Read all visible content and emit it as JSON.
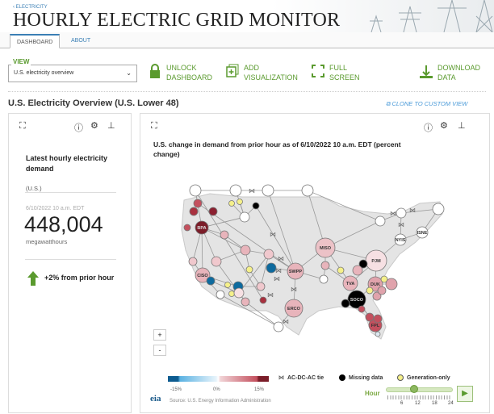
{
  "header": {
    "breadcrumb": "‹ ELECTRICITY",
    "title": "HOURLY ELECTRIC GRID MONITOR"
  },
  "tabs": [
    {
      "label": "DASHBOARD",
      "active": true
    },
    {
      "label": "ABOUT",
      "active": false
    }
  ],
  "view": {
    "label": "VIEW",
    "selected": "U.S. electricity overview"
  },
  "toolbar": {
    "unlock": [
      "UNLOCK",
      "DASHBOARD"
    ],
    "add": [
      "ADD",
      "VISUALIZATION"
    ],
    "full": [
      "FULL",
      "SCREEN"
    ],
    "download": [
      "DOWNLOAD",
      "DATA"
    ]
  },
  "section": {
    "title": "U.S. Electricity Overview (U.S. Lower 48)",
    "clone": "CLONE TO CUSTOM VIEW"
  },
  "demand_card": {
    "heading": "Latest hourly electricity demand",
    "region": "(U.S.)",
    "timestamp": "6/10/2022 10 a.m. EDT",
    "value": "448,004",
    "unit": "megawatthours",
    "change": "+2% from prior hour",
    "change_direction": "up"
  },
  "map_card": {
    "title": "U.S. change in demand from prior hour as of 6/10/2022 10 a.m. EDT (percent change)",
    "zoom_in": "+",
    "zoom_out": "-",
    "colorbar_ticks": [
      "-15%",
      "0%",
      "15%"
    ],
    "legend": {
      "tie": "AC-DC-AC tie",
      "missing": "Missing data",
      "generation": "Generation-only"
    },
    "source": "Source: U.S. Energy Information Administration",
    "logo": "eia",
    "hour_label": "Hour",
    "hour_ticks": [
      "6",
      "12",
      "18",
      "24"
    ],
    "hour_value": 10,
    "colors": {
      "accent": "#5a9a2e",
      "link": "#3a7fb5",
      "missing": "#000000",
      "generation": "#f5f08a",
      "no_data": "#ffffff"
    },
    "nodes": [
      {
        "label": "",
        "color": "#ffffff"
      },
      {
        "label": "",
        "color": "#ffffff"
      },
      {
        "label": "",
        "color": "#ffffff"
      },
      {
        "label": "",
        "color": "#ffffff"
      },
      {
        "label": "BPA",
        "color": "#7b1d29"
      },
      {
        "label": "CISO",
        "color": "#e8b4bb"
      },
      {
        "label": "SWPP",
        "color": "#e8b4bb"
      },
      {
        "label": "ERCO",
        "color": "#e8b4bb"
      },
      {
        "label": "MISO",
        "color": "#ecc2c7"
      },
      {
        "label": "PJM",
        "color": "#f6e0e3"
      },
      {
        "label": "NYIS",
        "color": "#ffffff"
      },
      {
        "label": "ISNE",
        "color": "#ffffff"
      },
      {
        "label": "TVA",
        "color": "#e8b4bb"
      },
      {
        "label": "DUK",
        "color": "#e0a3ac"
      },
      {
        "label": "SOCO",
        "color": "#000000"
      },
      {
        "label": "FPL",
        "color": "#c4505e"
      },
      {
        "label": "",
        "color": "#ffffff"
      },
      {
        "label": "",
        "color": "#ffffff"
      },
      {
        "label": "",
        "color": "#ffffff"
      },
      {
        "label": "",
        "color": "#ffffff"
      },
      {
        "label": "",
        "color": "#ffffff"
      },
      {
        "label": "",
        "color": "#ffffff"
      },
      {
        "label": "",
        "color": "#ffffff"
      },
      {
        "label": "",
        "color": "#0d6a9e"
      },
      {
        "label": "",
        "color": "#0d6a9e"
      },
      {
        "label": "",
        "color": "#0d6a9e"
      },
      {
        "label": "",
        "color": "#000000"
      },
      {
        "label": "",
        "color": "#000000"
      },
      {
        "label": "",
        "color": "#000000"
      },
      {
        "label": "",
        "color": "#f5f08a"
      },
      {
        "label": "",
        "color": "#f5f08a"
      },
      {
        "label": "",
        "color": "#f5f08a"
      },
      {
        "label": "",
        "color": "#f5f08a"
      },
      {
        "label": "",
        "color": "#f5f08a"
      },
      {
        "label": "",
        "color": "#f5f08a"
      },
      {
        "label": "",
        "color": "#f5f08a"
      },
      {
        "label": "",
        "color": "#f5f08a"
      },
      {
        "label": "",
        "color": "#e8b4bb"
      },
      {
        "label": "",
        "color": "#f0c8cd"
      },
      {
        "label": "",
        "color": "#e8b4bb"
      },
      {
        "label": "",
        "color": "#f0c8cd"
      },
      {
        "label": "",
        "color": "#f0c8cd"
      },
      {
        "label": "",
        "color": "#f0c8cd"
      },
      {
        "label": "",
        "color": "#e8b4bb"
      },
      {
        "label": "",
        "color": "#f6e0e3"
      },
      {
        "label": "",
        "color": "#e8b4bb"
      },
      {
        "label": "",
        "color": "#e8b4bb"
      },
      {
        "label": "",
        "color": "#e0a3ac"
      },
      {
        "label": "",
        "color": "#e0a3ac"
      },
      {
        "label": "",
        "color": "#e0a3ac"
      },
      {
        "label": "",
        "color": "#c4505e"
      },
      {
        "label": "",
        "color": "#c4505e"
      },
      {
        "label": "",
        "color": "#c4505e"
      },
      {
        "label": "",
        "color": "#8b2030"
      },
      {
        "label": "",
        "color": "#a8303e"
      },
      {
        "label": "",
        "color": "#a8303e"
      },
      {
        "label": "",
        "color": "#c4505e"
      },
      {
        "label": "",
        "color": "#c4505e"
      },
      {
        "label": "",
        "color": "#dde8f0"
      }
    ]
  }
}
